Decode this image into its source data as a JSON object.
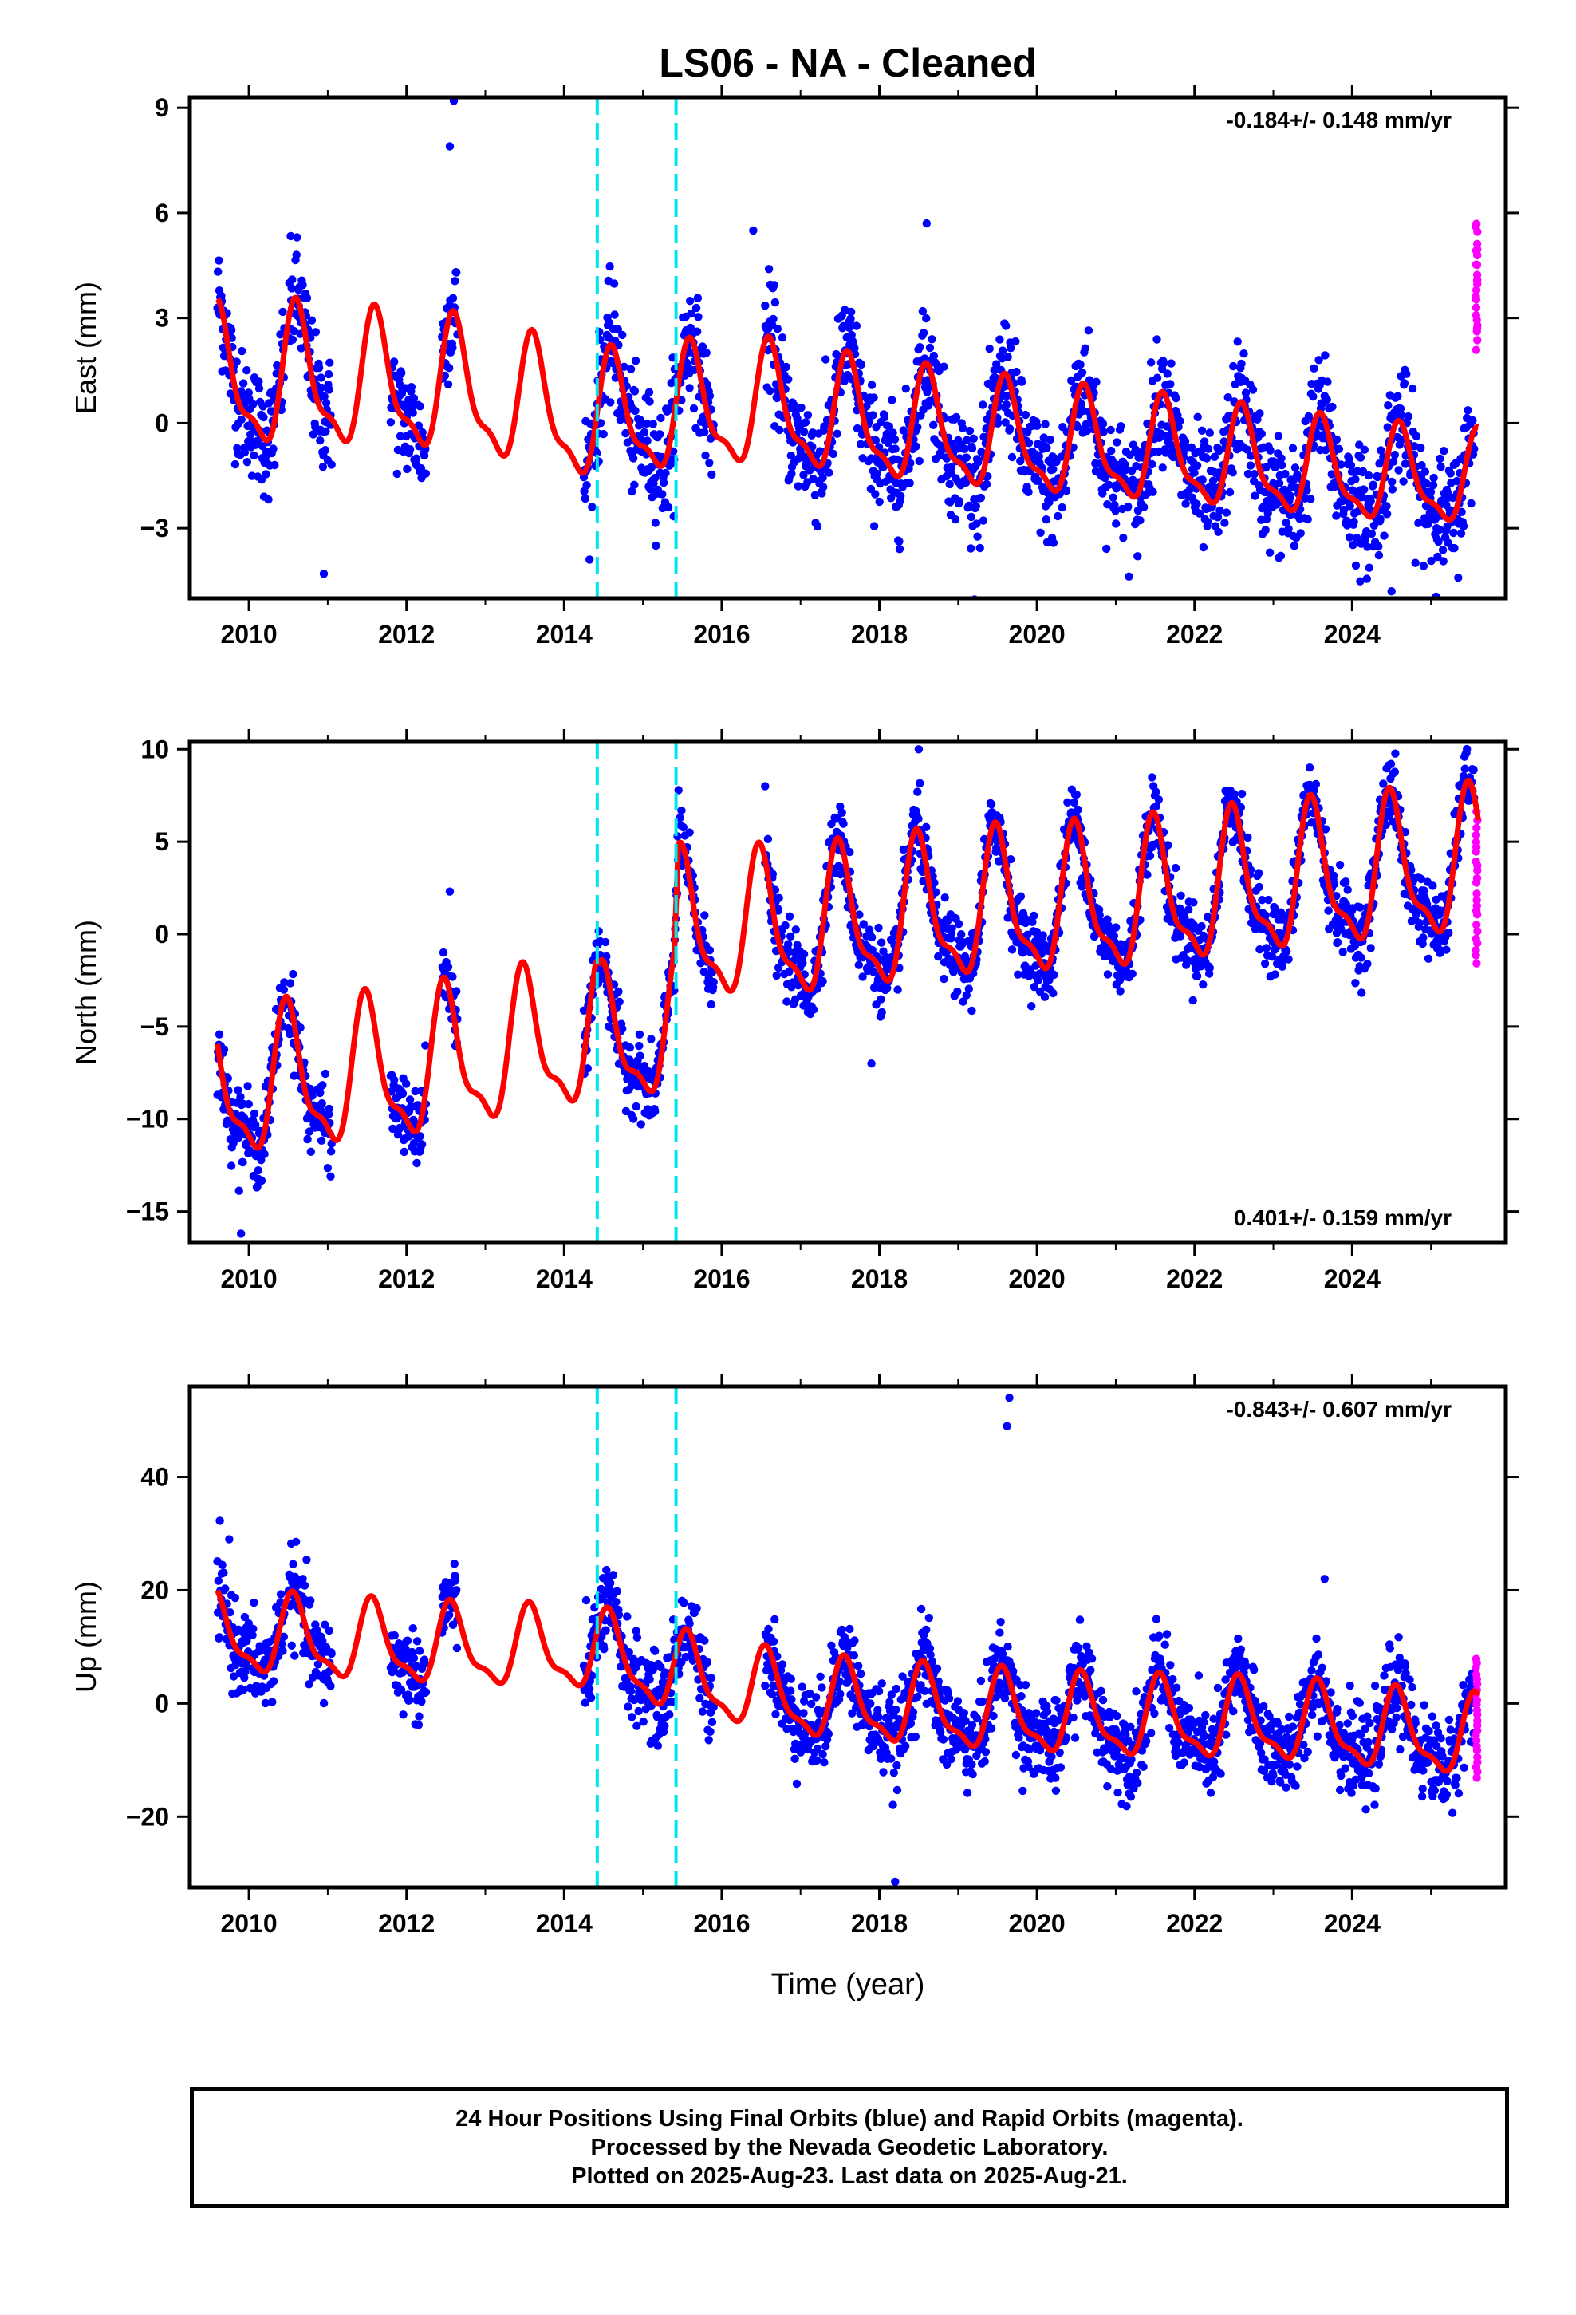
{
  "title": "LS06  - NA - Cleaned",
  "xlabel": "Time (year)",
  "footer": {
    "line1": "24 Hour Positions Using Final Orbits (blue) and Rapid Orbits (magenta).",
    "line2": "Processed by the Nevada Geodetic Laboratory.",
    "line3": "Plotted on 2025-Aug-23. Last data on 2025-Aug-21."
  },
  "colors": {
    "final_orbits": "#0000ff",
    "rapid_orbits": "#ff00ff",
    "model": "#ff0000",
    "breaks": "#00e5ee",
    "axes": "#000000"
  },
  "chart_data": [
    {
      "type": "scatter",
      "component": "East",
      "ylabel": "East (mm)",
      "rate_label": "-0.184+/- 0.148 mm/yr",
      "rate_position": "top-right",
      "xlim": [
        2009.25,
        2025.95
      ],
      "ylim": [
        -5.0,
        9.3
      ],
      "yticks": [
        -3,
        0,
        3,
        6,
        9
      ],
      "xticks": [
        2010,
        2012,
        2014,
        2016,
        2018,
        2020,
        2022,
        2024
      ],
      "xtick_labels": [
        "2010",
        "2012",
        "2014",
        "2016",
        "2018",
        "2020",
        "2022",
        "2024"
      ],
      "breaks": [
        2014.42,
        2015.42
      ],
      "data_segments": [
        [
          2009.6,
          2010.45
        ],
        [
          2010.5,
          2011.05
        ],
        [
          2011.8,
          2012.25
        ],
        [
          2012.45,
          2012.65
        ],
        [
          2014.25,
          2015.9
        ],
        [
          2016.55,
          2025.55
        ]
      ],
      "rapid_span": [
        2025.48,
        2025.6
      ],
      "model": {
        "amp_seasonal": 1.85,
        "peak_phase": 0.62,
        "decay": 0.35,
        "trend_knots": [
          [
            2009.6,
            1.1
          ],
          [
            2010.5,
            1.2
          ],
          [
            2012.7,
            0.9
          ],
          [
            2014.4,
            0.0
          ],
          [
            2015.4,
            0.3
          ],
          [
            2016.6,
            0.4
          ],
          [
            2018.0,
            -0.1
          ],
          [
            2020.0,
            -0.6
          ],
          [
            2022.0,
            -1.0
          ],
          [
            2024.0,
            -1.5
          ],
          [
            2025.6,
            -1.7
          ]
        ],
        "noise": 1.1,
        "rapid_range": [
          2.2,
          5.7
        ]
      },
      "outliers": [
        [
          2012.6,
          9.2
        ],
        [
          2012.55,
          7.9
        ],
        [
          2010.95,
          -4.3
        ],
        [
          2024.5,
          -4.8
        ],
        [
          2016.4,
          5.5
        ],
        [
          2018.6,
          5.7
        ]
      ]
    },
    {
      "type": "scatter",
      "component": "North",
      "ylabel": "North (mm)",
      "rate_label": "0.401+/- 0.159 mm/yr",
      "rate_position": "bottom-right",
      "xlim": [
        2009.25,
        2025.95
      ],
      "ylim": [
        -16.7,
        10.4
      ],
      "yticks": [
        -15,
        -10,
        -5,
        0,
        5,
        10
      ],
      "xticks": [
        2010,
        2012,
        2014,
        2016,
        2018,
        2020,
        2022,
        2024
      ],
      "xtick_labels": [
        "2010",
        "2012",
        "2014",
        "2016",
        "2018",
        "2020",
        "2022",
        "2024"
      ],
      "breaks": [
        2014.42,
        2015.42
      ],
      "data_segments": [
        [
          2009.6,
          2010.45
        ],
        [
          2010.5,
          2011.05
        ],
        [
          2011.8,
          2012.25
        ],
        [
          2012.45,
          2012.65
        ],
        [
          2014.25,
          2015.9
        ],
        [
          2016.55,
          2025.55
        ]
      ],
      "rapid_span": [
        2025.48,
        2025.6
      ],
      "model": {
        "amp_seasonal": 3.6,
        "peak_phase": 0.5,
        "decay": 0.0,
        "trend_knots": [
          [
            2009.6,
            -8.5
          ],
          [
            2012.0,
            -7.5
          ],
          [
            2014.4,
            -5.5
          ],
          [
            2014.45,
            -6.2
          ],
          [
            2015.4,
            -4.8
          ],
          [
            2015.45,
            0.2
          ],
          [
            2017.0,
            0.2
          ],
          [
            2019.0,
            1.2
          ],
          [
            2021.0,
            1.6
          ],
          [
            2023.0,
            2.6
          ],
          [
            2025.6,
            3.6
          ]
        ],
        "noise": 1.3,
        "rapid_range": [
          -1.5,
          6.5
        ]
      },
      "outliers": [
        [
          2009.9,
          -16.2
        ],
        [
          2012.55,
          2.3
        ],
        [
          2017.9,
          -7.0
        ],
        [
          2018.5,
          10.0
        ],
        [
          2016.55,
          8.0
        ]
      ]
    },
    {
      "type": "scatter",
      "component": "Up",
      "ylabel": "Up (mm)",
      "rate_label": "-0.843+/- 0.607 mm/yr",
      "rate_position": "top-right",
      "xlim": [
        2009.25,
        2025.95
      ],
      "ylim": [
        -32.5,
        56.0
      ],
      "yticks": [
        -20,
        0,
        20,
        40
      ],
      "xticks": [
        2010,
        2012,
        2014,
        2016,
        2018,
        2020,
        2022,
        2024
      ],
      "xtick_labels": [
        "2010",
        "2012",
        "2014",
        "2016",
        "2018",
        "2020",
        "2022",
        "2024"
      ],
      "breaks": [
        2014.42,
        2015.42
      ],
      "data_segments": [
        [
          2009.6,
          2010.45
        ],
        [
          2010.5,
          2011.05
        ],
        [
          2011.8,
          2012.25
        ],
        [
          2012.45,
          2012.65
        ],
        [
          2014.25,
          2015.9
        ],
        [
          2016.55,
          2025.55
        ]
      ],
      "rapid_span": [
        2025.48,
        2025.6
      ],
      "model": {
        "amp_seasonal": 6.5,
        "peak_phase": 0.58,
        "decay": 0.0,
        "trend_knots": [
          [
            2009.6,
            12.0
          ],
          [
            2012.0,
            10.0
          ],
          [
            2014.4,
            9.0
          ],
          [
            2015.4,
            5.0
          ],
          [
            2017.0,
            0.5
          ],
          [
            2019.0,
            -1.5
          ],
          [
            2021.0,
            -3.0
          ],
          [
            2023.0,
            -3.5
          ],
          [
            2025.6,
            -6.5
          ]
        ],
        "noise": 5.0,
        "rapid_range": [
          -13.0,
          8.0
        ]
      },
      "outliers": [
        [
          2019.65,
          54.0
        ],
        [
          2019.62,
          49.0
        ],
        [
          2018.2,
          -31.5
        ],
        [
          2023.65,
          22.0
        ],
        [
          2009.75,
          29.0
        ]
      ]
    }
  ]
}
